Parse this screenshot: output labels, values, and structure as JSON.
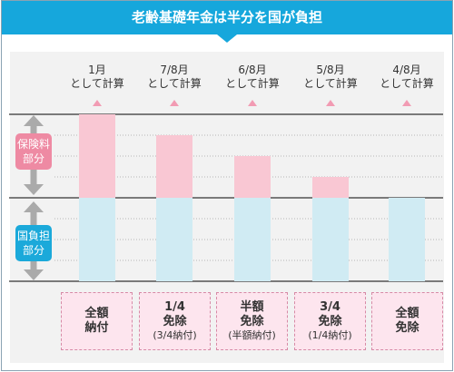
{
  "title": "老齢基礎年金は半分を国が負担",
  "colors": {
    "title_bg": "#16a7dc",
    "premium": "#f9c7d3",
    "national": "#d0ebf3",
    "premium_label_bg": "#ee8aa3",
    "national_label_bg": "#1ba9da",
    "box_bg": "#fde5ee",
    "box_border": "#d78aa6",
    "arrow": "#aaaaaa"
  },
  "side_labels": {
    "premium": "保険料\n部分",
    "national": "国負担\n部分"
  },
  "chart_data": {
    "type": "bar",
    "stacked": true,
    "title": "老齢基礎年金は半分を国が負担",
    "categories": [
      "全額納付",
      "1/4免除",
      "半額免除",
      "3/4免除",
      "全額免除"
    ],
    "column_headers": [
      {
        "fraction": "1月",
        "text": "として計算"
      },
      {
        "fraction": "7/8月",
        "text": "として計算"
      },
      {
        "fraction": "6/8月",
        "text": "として計算"
      },
      {
        "fraction": "5/8月",
        "text": "として計算"
      },
      {
        "fraction": "4/8月",
        "text": "として計算"
      }
    ],
    "series": [
      {
        "name": "国負担部分",
        "values": [
          4,
          4,
          4,
          4,
          4
        ]
      },
      {
        "name": "保険料部分",
        "values": [
          4,
          3,
          2,
          1,
          0
        ]
      }
    ],
    "ylim": [
      0,
      8
    ],
    "grid": true
  },
  "boxes": [
    {
      "main": "全額\n納付",
      "sub": ""
    },
    {
      "main": "1/4\n免除",
      "sub": "(3/4納付)"
    },
    {
      "main": "半額\n免除",
      "sub": "(半額納付)"
    },
    {
      "main": "3/4\n免除",
      "sub": "(1/4納付)"
    },
    {
      "main": "全額\n免除",
      "sub": ""
    }
  ]
}
